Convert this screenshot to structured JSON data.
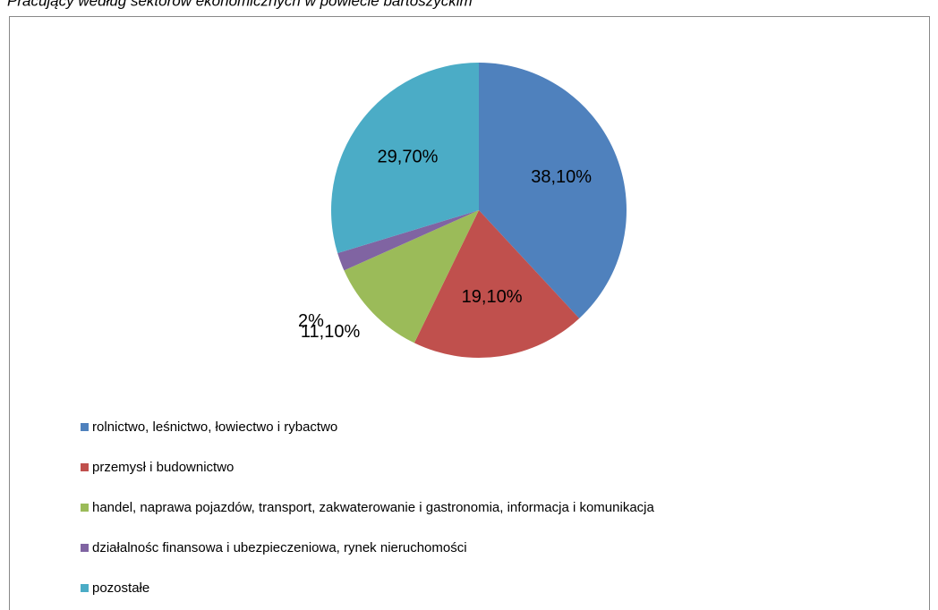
{
  "chart_data": {
    "type": "pie",
    "title": "Pracujący według sektorów ekonomicznych w powiecie bartoszyckim",
    "categories": [
      "rolnictwo,  leśnictwo,  łowiectwo i rybactwo",
      "przemysł i budownictwo",
      "handel, naprawa pojazdów, transport, zakwaterowanie i gastronomia, informacja i komunikacja",
      "działalnośc finansowa i ubezpieczeniowa, rynek nieruchomości",
      "pozostałe"
    ],
    "values": [
      38.1,
      19.1,
      11.1,
      2,
      29.7
    ],
    "value_labels": [
      "38,10%",
      "19,10%",
      "11,10%",
      "2%",
      "29,70%"
    ],
    "colors": [
      "#4f81bd",
      "#c0504d",
      "#9bbb59",
      "#8064a2",
      "#4bacc6"
    ],
    "legend": "bottom"
  }
}
